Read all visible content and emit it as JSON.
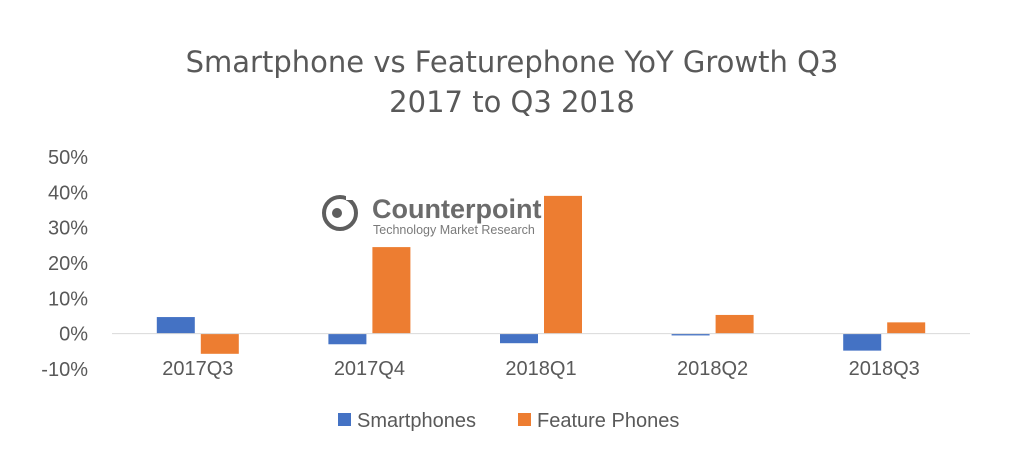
{
  "chart_data": {
    "type": "bar",
    "title_lines": [
      "Smartphone vs Featurephone YoY Growth Q3",
      "2017 to Q3 2018"
    ],
    "categories": [
      "2017Q3",
      "2017Q4",
      "2018Q1",
      "2018Q2",
      "2018Q3"
    ],
    "series": [
      {
        "name": "Smartphones",
        "color": "#4472C4",
        "values": [
          4.7,
          -3.0,
          -2.7,
          -0.5,
          -4.8
        ]
      },
      {
        "name": "Feature Phones",
        "color": "#ED7D31",
        "values": [
          -5.7,
          24.5,
          39.0,
          5.3,
          3.2
        ]
      }
    ],
    "ylim": [
      -10,
      50
    ],
    "yticks": [
      50,
      40,
      30,
      20,
      10,
      0,
      -10
    ],
    "ytick_labels": [
      "50%",
      "40%",
      "30%",
      "20%",
      "10%",
      "0%",
      "-10%"
    ],
    "grid": false,
    "legend_position": "bottom"
  },
  "watermark": {
    "name": "Counterpoint",
    "subtitle": "Technology Market Research",
    "icon": "counterpoint-logo-icon"
  }
}
